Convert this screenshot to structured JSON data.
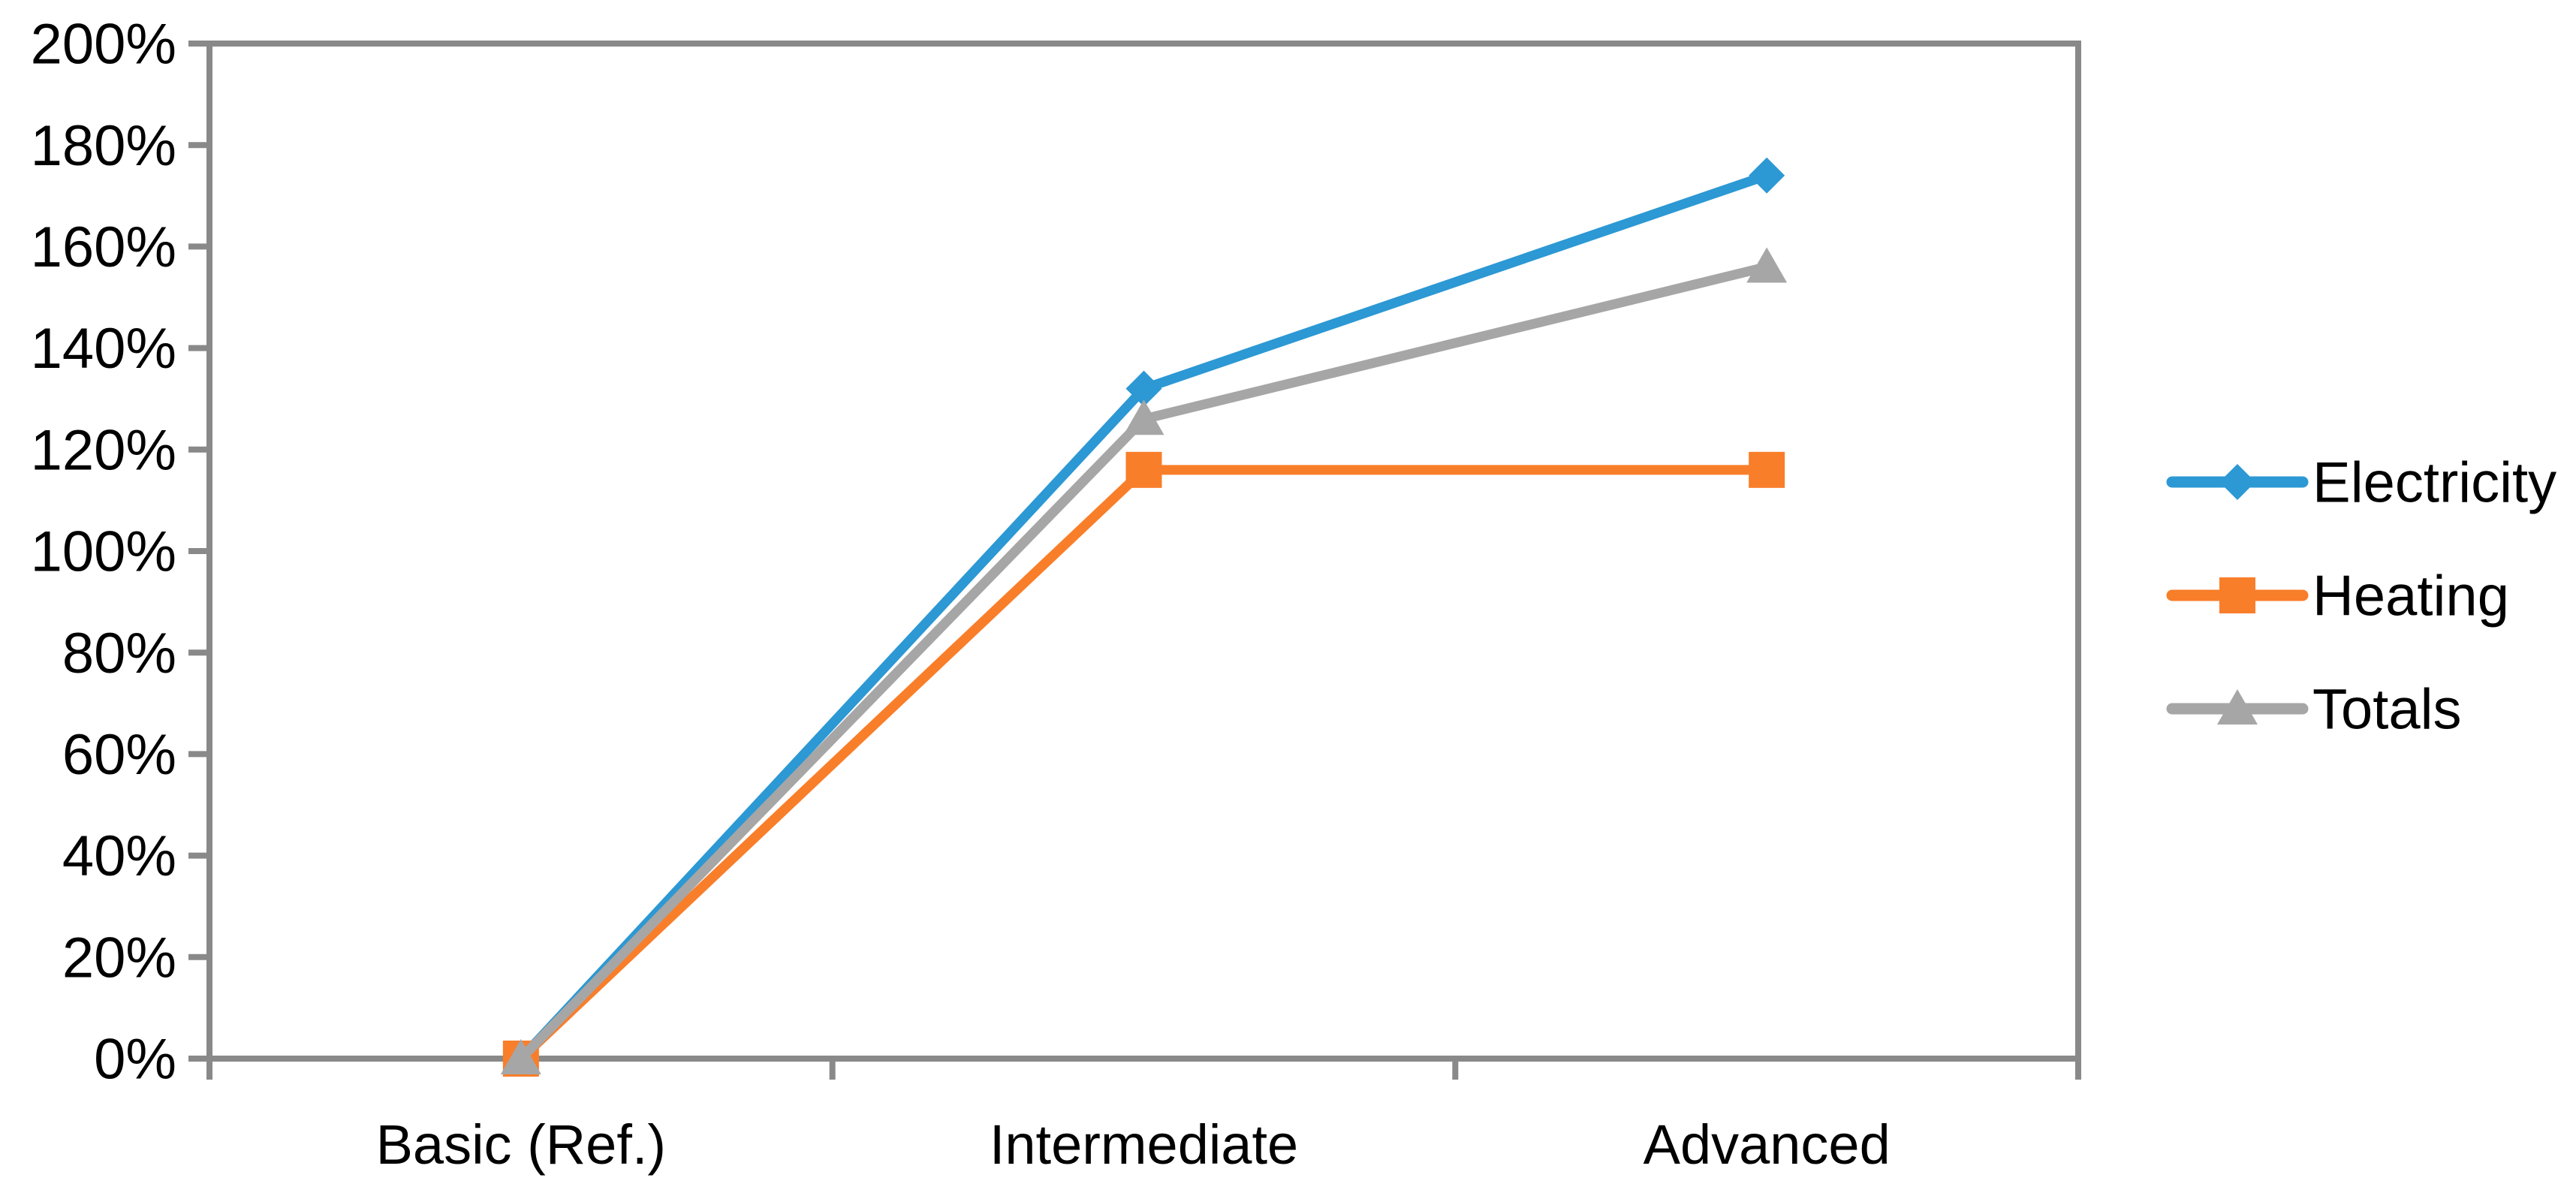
{
  "chart_data": {
    "type": "line",
    "title": "",
    "xlabel": "",
    "ylabel": "",
    "categories": [
      "Basic (Ref.)",
      "Intermediate",
      "Advanced"
    ],
    "series": [
      {
        "name": "Electricity",
        "values": [
          0,
          132,
          174
        ],
        "color": "#2C98D4",
        "marker": "diamond"
      },
      {
        "name": "Heating",
        "values": [
          0,
          116,
          116
        ],
        "color": "#F97E2A",
        "marker": "square"
      },
      {
        "name": "Totals",
        "values": [
          0,
          126,
          156
        ],
        "color": "#A6A6A6",
        "marker": "triangle"
      }
    ],
    "ylim": [
      0,
      200
    ],
    "y_tick_step": 20,
    "y_tick_labels": [
      "0%",
      "20%",
      "40%",
      "60%",
      "80%",
      "100%",
      "120%",
      "140%",
      "160%",
      "180%",
      "200%"
    ],
    "grid": false,
    "legend_position": "right",
    "axis_color": "#898989",
    "text_color": "#000000"
  }
}
